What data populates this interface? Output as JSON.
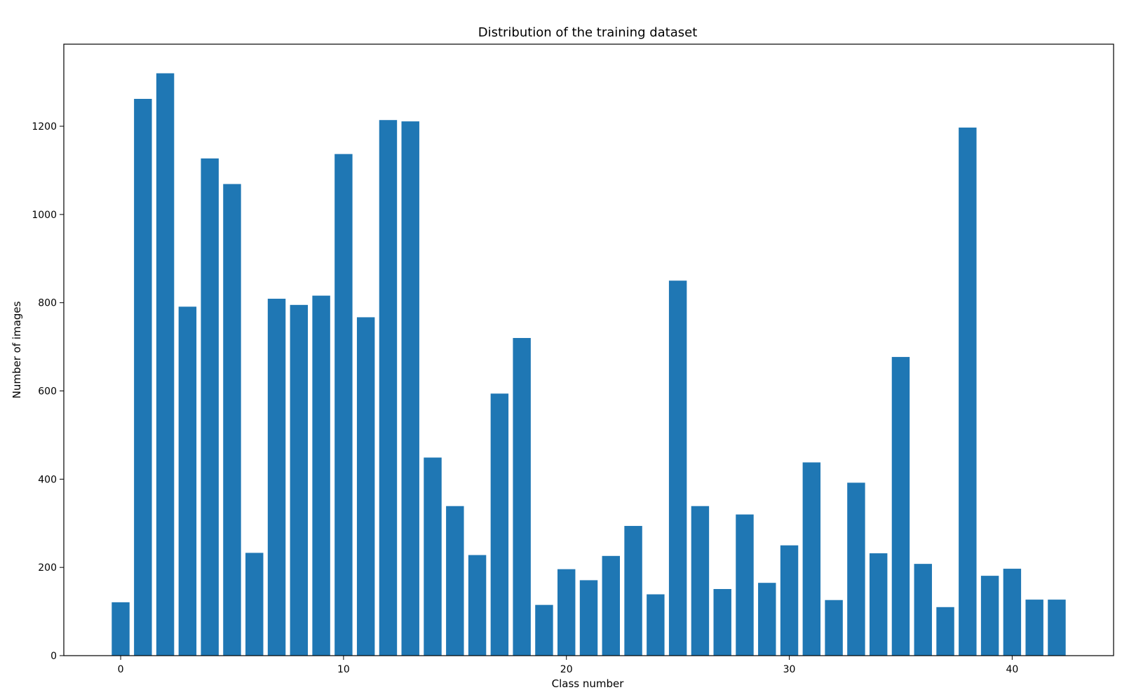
{
  "chart_data": {
    "type": "bar",
    "title": "Distribution of the training dataset",
    "xlabel": "Class number",
    "ylabel": "Number of images",
    "xlim": [
      -2.55,
      44.55
    ],
    "ylim": [
      0,
      1386
    ],
    "xticks": [
      0,
      10,
      20,
      30,
      40
    ],
    "yticks": [
      0,
      200,
      400,
      600,
      800,
      1000,
      1200
    ],
    "grid": false,
    "legend": "none",
    "bar_color": "#1f77b4",
    "categories": [
      0,
      1,
      2,
      3,
      4,
      5,
      6,
      7,
      8,
      9,
      10,
      11,
      12,
      13,
      14,
      15,
      16,
      17,
      18,
      19,
      20,
      21,
      22,
      23,
      24,
      25,
      26,
      27,
      28,
      29,
      30,
      31,
      32,
      33,
      34,
      35,
      36,
      37,
      38,
      39,
      40,
      41,
      42
    ],
    "values": [
      121,
      1262,
      1320,
      791,
      1127,
      1069,
      233,
      809,
      795,
      816,
      1137,
      767,
      1214,
      1211,
      449,
      339,
      228,
      594,
      720,
      115,
      196,
      171,
      226,
      294,
      139,
      850,
      339,
      151,
      320,
      165,
      250,
      438,
      126,
      392,
      232,
      677,
      208,
      110,
      1197,
      181,
      197,
      127,
      127
    ]
  }
}
